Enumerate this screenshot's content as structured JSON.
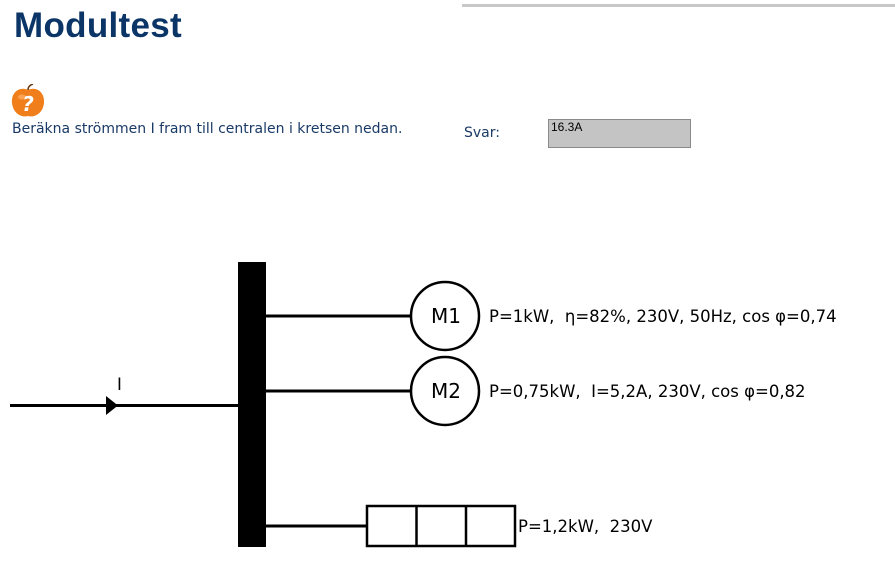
{
  "page": {
    "title": "Modultest"
  },
  "question": {
    "text": "Beräkna strömmen I fram till centralen i kretsen nedan."
  },
  "answer": {
    "label": "Svar:",
    "value": "16.3A"
  },
  "circuit": {
    "current_label": "I",
    "motor1": {
      "label": "M1",
      "spec": "P=1kW,  η=82%, 230V, 50Hz, cos φ=0,74"
    },
    "motor2": {
      "label": "M2",
      "spec": "P=0,75kW,  I=5,2A, 230V, cos φ=0,82"
    },
    "resistive_load": {
      "spec": "P=1,2kW,  230V"
    }
  },
  "colors": {
    "title": "#0b3566",
    "body_text": "#1a3a66",
    "answer_background": "#c4c4c4",
    "help_icon": "#f07e1b"
  },
  "icons": {
    "help": "orange-question-icon"
  }
}
